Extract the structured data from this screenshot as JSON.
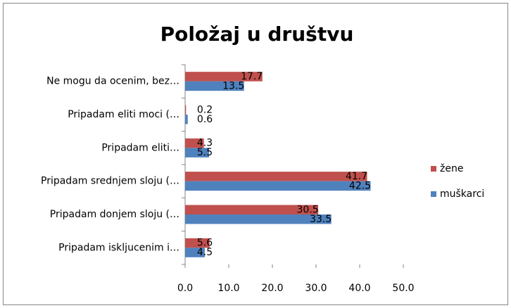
{
  "chart_data": {
    "type": "bar",
    "orientation": "horizontal",
    "title": "Položaj u društvu",
    "categories": [
      "Ne mogu da ocenim, bez…",
      "Pripadam eliti moci (…",
      "Pripadam  eliti…",
      "Pripadam srednjem sloju (…",
      "Pripadam donjem sloju (…",
      "Pripadam iskljucenim  i…"
    ],
    "series": [
      {
        "name": "žene",
        "color": "#c0504d",
        "values": [
          17.7,
          0.2,
          4.3,
          41.7,
          30.5,
          5.6
        ]
      },
      {
        "name": "muškarci",
        "color": "#4f81bd",
        "values": [
          13.5,
          0.6,
          5.5,
          42.5,
          33.5,
          4.5
        ]
      }
    ],
    "xlim": [
      0,
      50
    ],
    "xticks": [
      {
        "value": 0,
        "label": "0.0"
      },
      {
        "value": 10,
        "label": "10.0"
      },
      {
        "value": 20,
        "label": "20.0"
      },
      {
        "value": 30,
        "label": "30.0"
      },
      {
        "value": 40,
        "label": "40.0"
      },
      {
        "value": 50,
        "label": "50.0"
      }
    ],
    "grid": false,
    "legend": "right"
  }
}
